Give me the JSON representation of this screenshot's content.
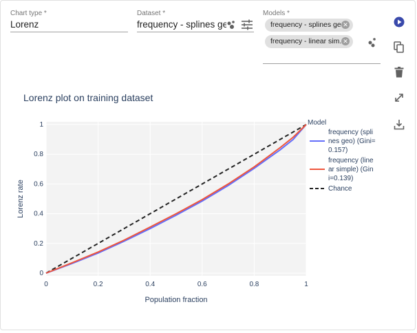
{
  "form": {
    "chart_type": {
      "label": "Chart type *",
      "value": "Lorenz"
    },
    "dataset": {
      "label": "Dataset *",
      "value": "frequency - splines geo"
    },
    "models": {
      "label": "Models *",
      "chips": [
        "frequency - splines geo",
        "frequency - linear sim..."
      ]
    }
  },
  "chart_data": {
    "type": "line",
    "title": "Lorenz plot on training dataset",
    "xlabel": "Population fraction",
    "ylabel": "Lorenz rate",
    "xlim": [
      0,
      1
    ],
    "ylim": [
      0,
      1
    ],
    "x_ticks": [
      "0",
      "0.2",
      "0.4",
      "0.6",
      "0.8",
      "1"
    ],
    "y_ticks": [
      "0",
      "0.2",
      "0.4",
      "0.6",
      "0.8",
      "1"
    ],
    "grid": true,
    "legend_title": "Model",
    "legend_position": "right",
    "series": [
      {
        "name": "frequency (splines geo) (Gini=0.157)",
        "legend_lines": [
          "frequency (spli",
          "nes geo) (Gini=",
          "0.157)"
        ],
        "color": "#636efa",
        "dash": "solid",
        "x": [
          0,
          0.1,
          0.2,
          0.3,
          0.4,
          0.5,
          0.6,
          0.7,
          0.8,
          0.9,
          0.95,
          1
        ],
        "y": [
          0,
          0.065,
          0.135,
          0.215,
          0.3,
          0.39,
          0.485,
          0.59,
          0.705,
          0.83,
          0.9,
          1
        ]
      },
      {
        "name": "frequency (linear simple) (Gini=0.139)",
        "legend_lines": [
          "frequency (line",
          "ar simple) (Gin",
          "i=0.139)"
        ],
        "color": "#ef553b",
        "dash": "solid",
        "x": [
          0,
          0.1,
          0.2,
          0.3,
          0.4,
          0.5,
          0.6,
          0.7,
          0.8,
          0.9,
          0.95,
          1
        ],
        "y": [
          0,
          0.07,
          0.142,
          0.222,
          0.31,
          0.4,
          0.495,
          0.6,
          0.715,
          0.845,
          0.915,
          1
        ]
      },
      {
        "name": "Chance",
        "legend_lines": [
          "Chance"
        ],
        "color": "#222222",
        "dash": "dash",
        "x": [
          0,
          1
        ],
        "y": [
          0,
          1
        ]
      }
    ]
  },
  "icons": {
    "dataset_dots": "scatter-dots-icon",
    "dataset_tune": "tune-icon",
    "models_dots": "scatter-dots-icon",
    "play": "play-icon",
    "copy": "copy-icon",
    "delete": "delete-icon",
    "expand": "expand-icon",
    "download": "download-icon"
  },
  "colors": {
    "accent": "#3949ab",
    "plot_bg": "#f3f3f3",
    "chip_bg": "#e0e0e0"
  }
}
